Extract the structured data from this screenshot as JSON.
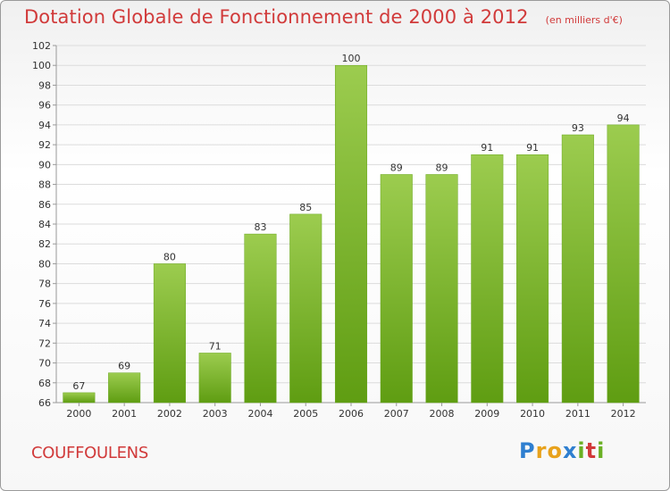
{
  "colors": {
    "title": "#d13a3a",
    "bar_light": "#9ccc4f",
    "bar_dark": "#5f9d12",
    "grid": "#dcdcdc",
    "axis": "#999999",
    "text": "#333333"
  },
  "header": {
    "title": "Dotation Globale de Fonctionnement de 2000 à 2012",
    "subtitle": "(en milliers d'€)"
  },
  "footer": {
    "commune": "COUFFOULENS",
    "logo_text": "Proxiti",
    "logo_letters": [
      {
        "ch": "P",
        "color": "#2f7fd0"
      },
      {
        "ch": "r",
        "color": "#e8a21c"
      },
      {
        "ch": "o",
        "color": "#e8a21c"
      },
      {
        "ch": "x",
        "color": "#2f7fd0"
      },
      {
        "ch": "i",
        "color": "#6ab023"
      },
      {
        "ch": "t",
        "color": "#d13a3a"
      },
      {
        "ch": "i",
        "color": "#6ab023"
      }
    ]
  },
  "chart_data": {
    "type": "bar",
    "title": "Dotation Globale de Fonctionnement de 2000 à 2012",
    "subtitle": "(en milliers d'€)",
    "xlabel": "",
    "ylabel": "",
    "categories": [
      "2000",
      "2001",
      "2002",
      "2003",
      "2004",
      "2005",
      "2006",
      "2007",
      "2008",
      "2009",
      "2010",
      "2011",
      "2012"
    ],
    "values": [
      67,
      69,
      80,
      71,
      83,
      85,
      100,
      89,
      89,
      91,
      91,
      93,
      94
    ],
    "ylim": [
      66,
      102
    ],
    "ytick_step": 2,
    "grid": true,
    "legend": "none"
  }
}
